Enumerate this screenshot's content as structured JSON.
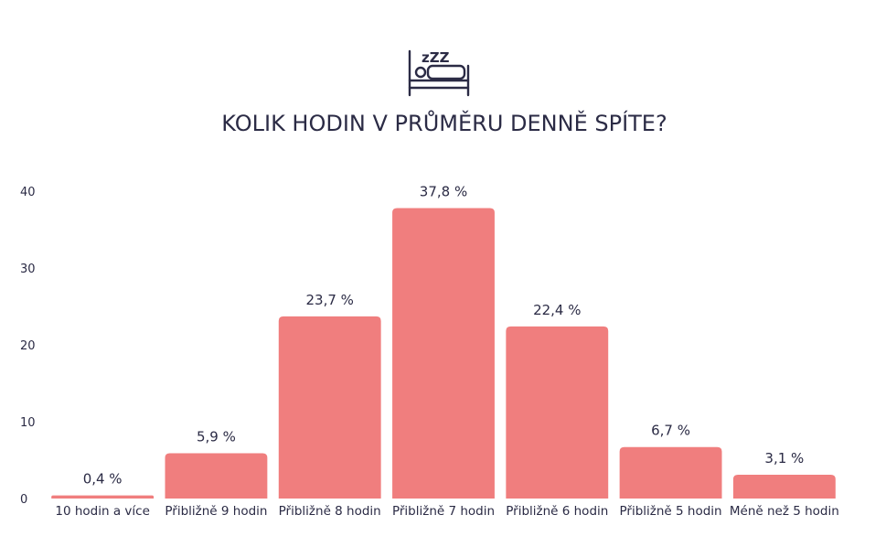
{
  "icon": {
    "name": "sleeping-bed-icon",
    "zzz": "zZZ"
  },
  "colors": {
    "bar": "#f07e7e",
    "text": "#2b2b45",
    "icon": "#2b2b45"
  },
  "chart_data": {
    "type": "bar",
    "title": "KOLIK HODIN V PRŮMĚRU DENNĚ SPÍTE?",
    "xlabel": "",
    "ylabel": "",
    "ylim": [
      0,
      40
    ],
    "yticks": [
      0,
      10,
      20,
      30,
      40
    ],
    "grid": false,
    "categories": [
      "10 hodin a více",
      "Přibližně 9 hodin",
      "Přibližně 8 hodin",
      "Přibližně 7 hodin",
      "Přibližně 6 hodin",
      "Přibližně 5 hodin",
      "Méně než 5 hodin"
    ],
    "values": [
      0.4,
      5.9,
      23.7,
      37.8,
      22.4,
      6.7,
      3.1
    ],
    "data_labels": [
      "0,4 %",
      "5,9 %",
      "23,7 %",
      "37,8 %",
      "22,4 %",
      "6,7 %",
      "3,1 %"
    ]
  }
}
